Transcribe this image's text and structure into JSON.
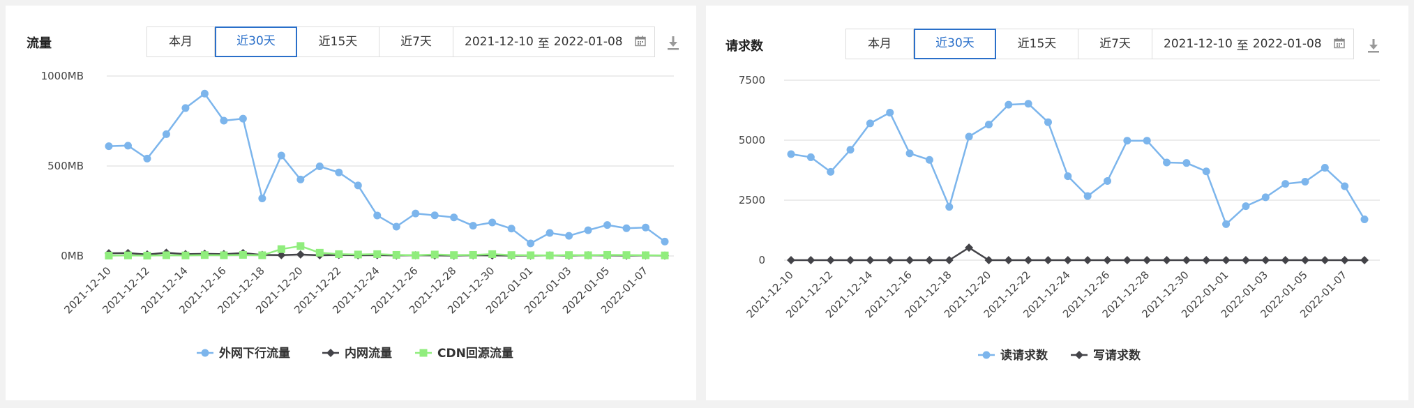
{
  "panels": [
    {
      "title": "流量",
      "range_buttons": [
        "本月",
        "近30天",
        "近15天",
        "近7天"
      ],
      "active_range": "近30天",
      "date_start": "2021-12-10",
      "date_sep": "至",
      "date_end": "2022-01-08",
      "icons": {
        "calendar": "calendar-icon",
        "download": "download-icon"
      }
    },
    {
      "title": "请求数",
      "range_buttons": [
        "本月",
        "近30天",
        "近15天",
        "近7天"
      ],
      "active_range": "近30天",
      "date_start": "2021-12-10",
      "date_sep": "至",
      "date_end": "2022-01-08",
      "icons": {
        "calendar": "calendar-icon",
        "download": "download-icon"
      }
    }
  ],
  "chart_data": [
    {
      "type": "line",
      "title": "",
      "x": [
        "2021-12-10",
        "2021-12-11",
        "2021-12-12",
        "2021-12-13",
        "2021-12-14",
        "2021-12-15",
        "2021-12-16",
        "2021-12-17",
        "2021-12-18",
        "2021-12-19",
        "2021-12-20",
        "2021-12-21",
        "2021-12-22",
        "2021-12-23",
        "2021-12-24",
        "2021-12-25",
        "2021-12-26",
        "2021-12-27",
        "2021-12-28",
        "2021-12-29",
        "2021-12-30",
        "2021-12-31",
        "2022-01-01",
        "2022-01-02",
        "2022-01-03",
        "2022-01-04",
        "2022-01-05",
        "2022-01-06",
        "2022-01-07",
        "2022-01-08"
      ],
      "x_tick_labels": [
        "2021-12-10",
        "2021-12-12",
        "2021-12-14",
        "2021-12-16",
        "2021-12-18",
        "2021-12-20",
        "2021-12-22",
        "2021-12-24",
        "2021-12-26",
        "2021-12-28",
        "2021-12-30",
        "2022-01-01",
        "2022-01-03",
        "2022-01-05",
        "2022-01-07"
      ],
      "y_ticks": [
        0,
        500,
        1000
      ],
      "y_tick_labels": [
        "0MB",
        "500MB",
        "1000MB"
      ],
      "ylim": [
        0,
        1000
      ],
      "grid": true,
      "legend": "bottom",
      "series": [
        {
          "name": "外网下行流量",
          "color": "#7cb5ec",
          "marker": "circle",
          "values": [
            610,
            613,
            541,
            677,
            822,
            902,
            752,
            763,
            320,
            558,
            425,
            498,
            464,
            392,
            225,
            163,
            236,
            226,
            214,
            168,
            186,
            152,
            70,
            128,
            112,
            143,
            172,
            154,
            158,
            80
          ]
        },
        {
          "name": "内网流量",
          "color": "#434348",
          "marker": "diamond",
          "values": [
            15,
            16,
            8,
            18,
            10,
            12,
            10,
            16,
            6,
            5,
            8,
            4,
            6,
            4,
            5,
            3,
            4,
            3,
            2,
            4,
            3,
            2,
            2,
            3,
            2,
            4,
            3,
            2,
            3,
            2
          ]
        },
        {
          "name": "CDN回源流量",
          "color": "#90ed7d",
          "marker": "square",
          "values": [
            2,
            3,
            2,
            4,
            3,
            5,
            4,
            6,
            4,
            38,
            55,
            18,
            10,
            8,
            10,
            6,
            4,
            8,
            5,
            6,
            10,
            5,
            4,
            3,
            5,
            4,
            6,
            5,
            4,
            3
          ]
        }
      ]
    },
    {
      "type": "line",
      "title": "",
      "x": [
        "2021-12-10",
        "2021-12-11",
        "2021-12-12",
        "2021-12-13",
        "2021-12-14",
        "2021-12-15",
        "2021-12-16",
        "2021-12-17",
        "2021-12-18",
        "2021-12-19",
        "2021-12-20",
        "2021-12-21",
        "2021-12-22",
        "2021-12-23",
        "2021-12-24",
        "2021-12-25",
        "2021-12-26",
        "2021-12-27",
        "2021-12-28",
        "2021-12-29",
        "2021-12-30",
        "2021-12-31",
        "2022-01-01",
        "2022-01-02",
        "2022-01-03",
        "2022-01-04",
        "2022-01-05",
        "2022-01-06",
        "2022-01-07",
        "2022-01-08"
      ],
      "x_tick_labels": [
        "2021-12-10",
        "2021-12-12",
        "2021-12-14",
        "2021-12-16",
        "2021-12-18",
        "2021-12-20",
        "2021-12-22",
        "2021-12-24",
        "2021-12-26",
        "2021-12-28",
        "2021-12-30",
        "2022-01-01",
        "2022-01-03",
        "2022-01-05",
        "2022-01-07"
      ],
      "y_ticks": [
        0,
        2500,
        5000,
        7500
      ],
      "y_tick_labels": [
        "0",
        "2500",
        "5000",
        "7500"
      ],
      "ylim": [
        0,
        7500
      ],
      "grid": true,
      "legend": "bottom",
      "series": [
        {
          "name": "读请求数",
          "color": "#7cb5ec",
          "marker": "circle",
          "values": [
            4420,
            4290,
            3680,
            4600,
            5700,
            6150,
            4450,
            4180,
            2220,
            5150,
            5650,
            6480,
            6520,
            5750,
            3500,
            2670,
            3300,
            4980,
            4980,
            4070,
            4050,
            3700,
            1500,
            2250,
            2620,
            3180,
            3270,
            3850,
            3080,
            1700
          ]
        },
        {
          "name": "写请求数",
          "color": "#434348",
          "marker": "diamond",
          "values": [
            0,
            0,
            0,
            0,
            0,
            0,
            0,
            0,
            0,
            520,
            0,
            0,
            0,
            0,
            0,
            0,
            0,
            0,
            0,
            0,
            0,
            0,
            0,
            0,
            0,
            0,
            0,
            0,
            0,
            0
          ]
        }
      ]
    }
  ]
}
